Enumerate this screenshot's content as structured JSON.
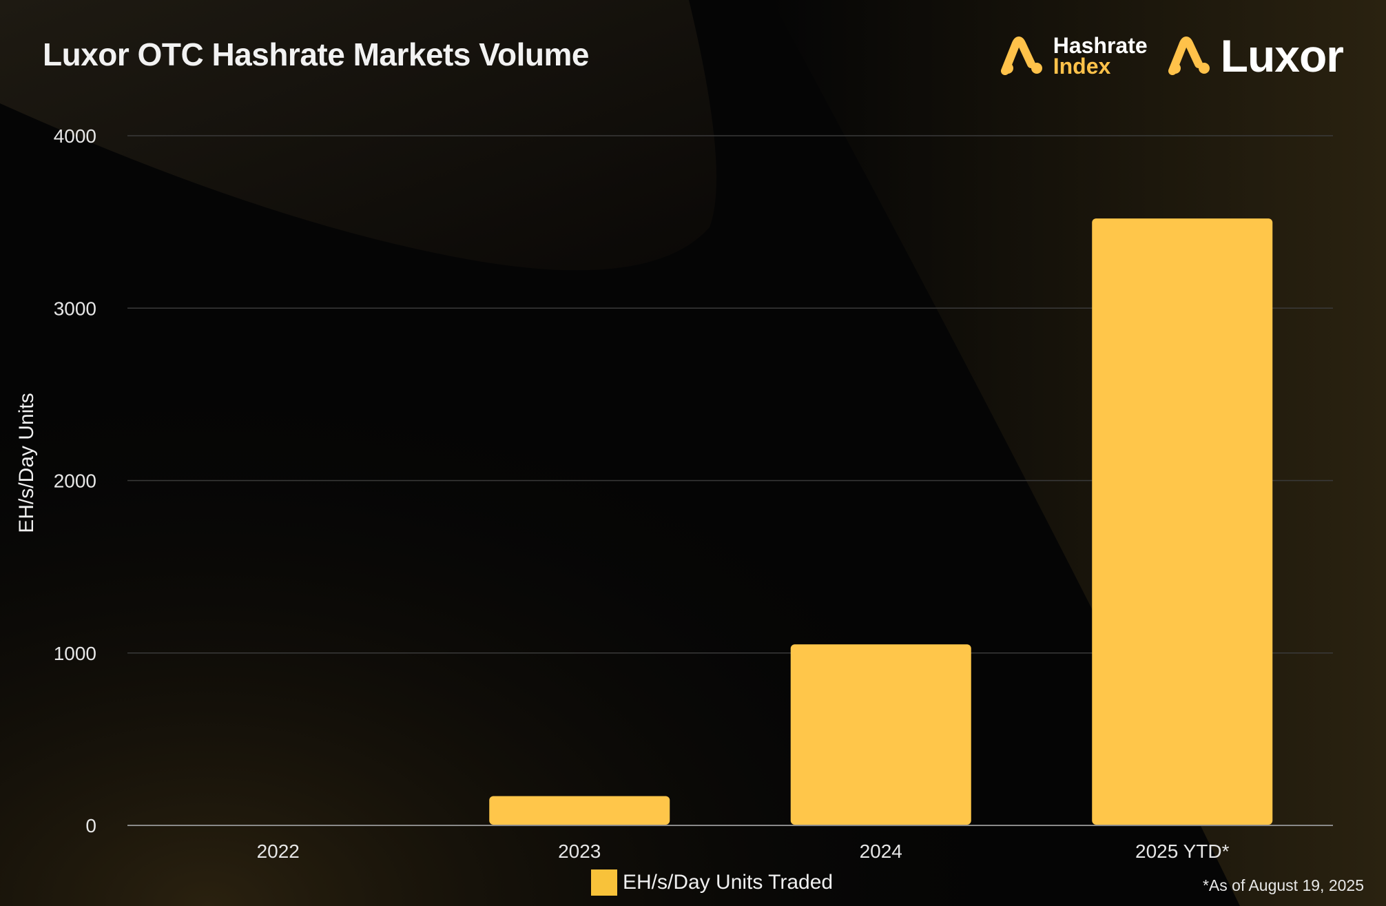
{
  "header": {
    "title": "Luxor OTC Hashrate Markets Volume",
    "logo_hashrate_line1": "Hashrate",
    "logo_hashrate_line2": "Index",
    "logo_luxor": "Luxor"
  },
  "colors": {
    "background": "#050505",
    "bar": "#ffc64a",
    "accent": "#ffc24a",
    "gridline": "#3a3a3a"
  },
  "chart_data": {
    "type": "bar",
    "title": "Luxor OTC Hashrate Markets Volume",
    "xlabel": "",
    "ylabel": "EH/s/Day Units",
    "categories": [
      "2022",
      "2023",
      "2024",
      "2025 YTD*"
    ],
    "series": [
      {
        "name": "EH/s/Day Units Traded",
        "values": [
          0,
          170,
          1050,
          3520
        ]
      }
    ],
    "ylim": [
      0,
      4000
    ],
    "yticks": [
      0,
      1000,
      2000,
      3000,
      4000
    ],
    "grid": true,
    "legend_position": "bottom-center"
  },
  "footnote": "*As of August 19, 2025"
}
